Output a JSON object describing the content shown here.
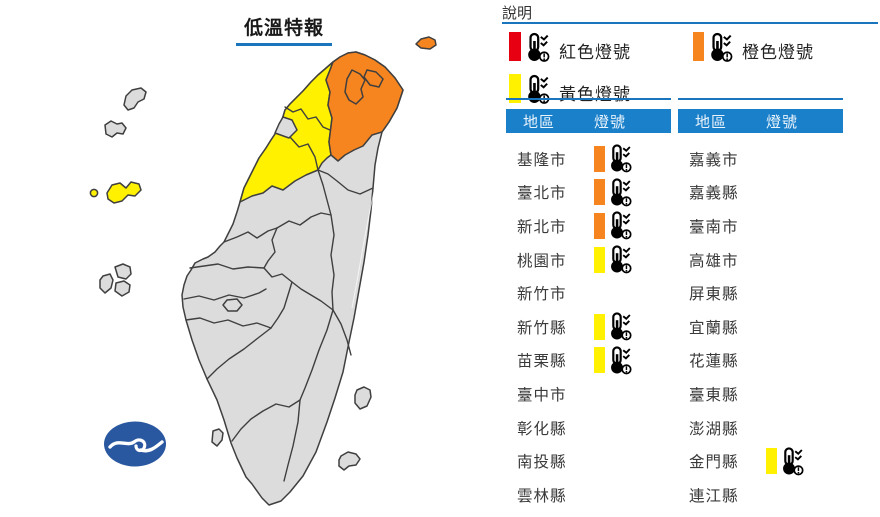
{
  "title": "低溫特報",
  "legend": {
    "heading": "說明",
    "items": [
      {
        "label": "紅色燈號",
        "signal": "red"
      },
      {
        "label": "橙色燈號",
        "signal": "orange"
      },
      {
        "label": "黃色燈號",
        "signal": "yellow"
      }
    ]
  },
  "tables": {
    "region_header": "地區",
    "signal_header": "燈號",
    "left_rows": [
      {
        "region": "基隆市",
        "signal": "orange"
      },
      {
        "region": "臺北市",
        "signal": "orange"
      },
      {
        "region": "新北市",
        "signal": "orange"
      },
      {
        "region": "桃園市",
        "signal": "yellow"
      },
      {
        "region": "新竹市",
        "signal": null
      },
      {
        "region": "新竹縣",
        "signal": "yellow"
      },
      {
        "region": "苗栗縣",
        "signal": "yellow"
      },
      {
        "region": "臺中市",
        "signal": null
      },
      {
        "region": "彰化縣",
        "signal": null
      },
      {
        "region": "南投縣",
        "signal": null
      },
      {
        "region": "雲林縣",
        "signal": null
      }
    ],
    "right_rows": [
      {
        "region": "嘉義市",
        "signal": null
      },
      {
        "region": "嘉義縣",
        "signal": null
      },
      {
        "region": "臺南市",
        "signal": null
      },
      {
        "region": "高雄市",
        "signal": null
      },
      {
        "region": "屏東縣",
        "signal": null
      },
      {
        "region": "宜蘭縣",
        "signal": null
      },
      {
        "region": "花蓮縣",
        "signal": null
      },
      {
        "region": "臺東縣",
        "signal": null
      },
      {
        "region": "澎湖縣",
        "signal": null
      },
      {
        "region": "金門縣",
        "signal": "yellow"
      },
      {
        "region": "連江縣",
        "signal": null
      }
    ]
  },
  "map": {
    "orange_counties": [
      "新北市",
      "臺北市",
      "基隆市"
    ],
    "yellow_counties": [
      "桃園市",
      "新竹縣",
      "苗栗縣",
      "金門縣"
    ],
    "no_signal_fill": "gray",
    "logo_name": "central-weather-administration-logo"
  },
  "colors": {
    "red": "#e60012",
    "orange": "#f6851f",
    "yellow": "#fff100",
    "blue": "#1b80ca",
    "blue_line": "#1a75bc",
    "gray_land": "#dcdcdc",
    "map_border": "#3f3f3f",
    "logo_blue": "#2a58a0"
  }
}
